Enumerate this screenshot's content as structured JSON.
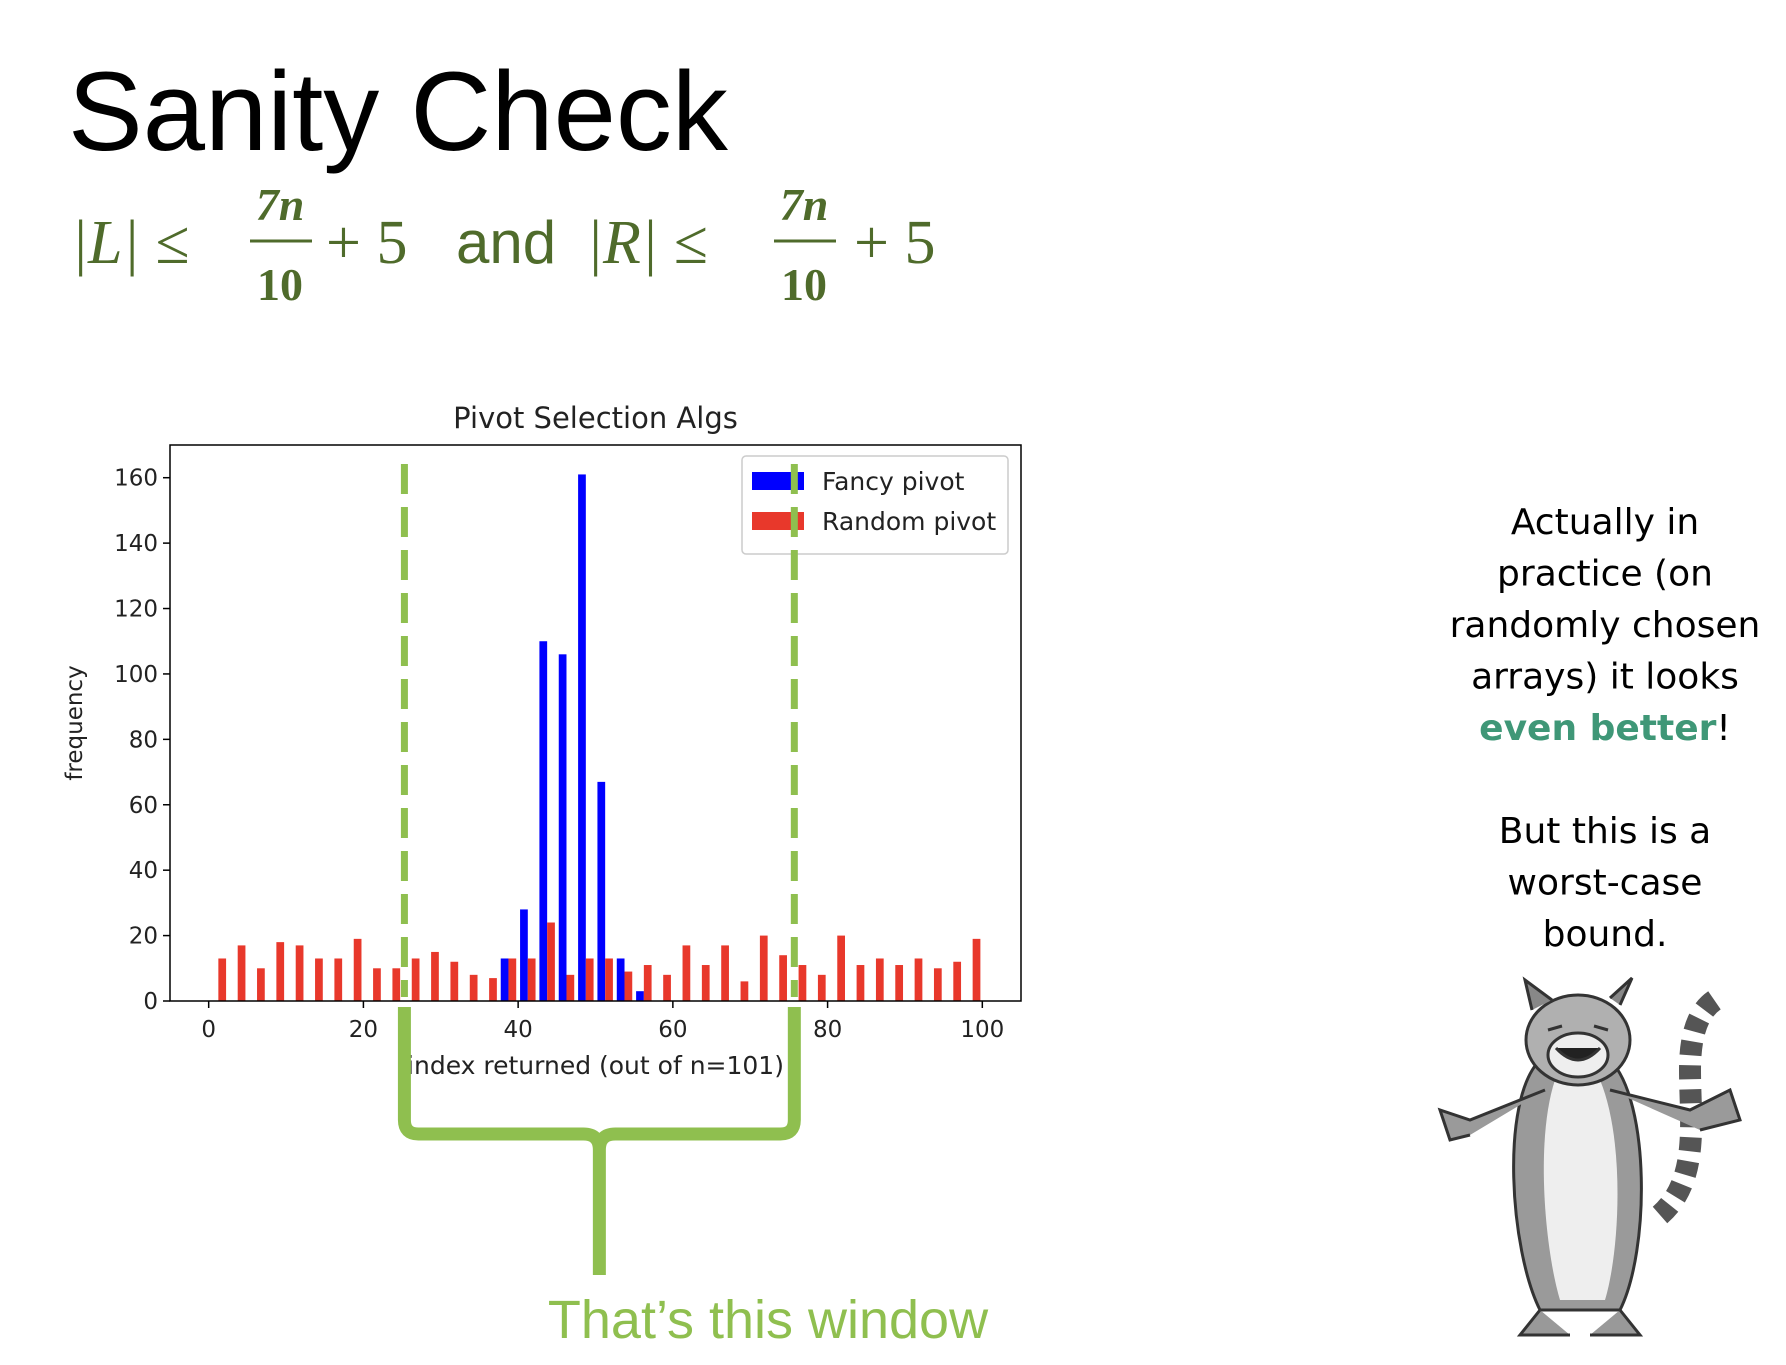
{
  "slide": {
    "title": "Sanity Check",
    "formula": {
      "lhs1": "|L| ≤",
      "frac_num": "7n",
      "frac_den": "10",
      "tail": "+ 5",
      "joiner": "and",
      "lhs2": "|R| ≤"
    },
    "note": {
      "lines": [
        "Actually in",
        "practice (on",
        "randomly chosen",
        "arrays) it looks"
      ],
      "emphasis": "even better",
      "end": "!",
      "lines2": [
        "But this is a",
        "worst-case",
        "bound."
      ]
    },
    "callout": "That’s this window"
  },
  "chart_data": {
    "type": "histogram",
    "title": "Pivot Selection Algs",
    "x_label": "index returned (out of n=101)",
    "y_label": "frequency",
    "bins": [
      0,
      2.5,
      5,
      7.5,
      10,
      12.5,
      15,
      17.5,
      20,
      22.5,
      25,
      27.5,
      30,
      32.5,
      35,
      37.5,
      40,
      42.5,
      45,
      47.5,
      50,
      52.5,
      55,
      57.5,
      60,
      62.5,
      65,
      67.5,
      70,
      72.5,
      75,
      77.5,
      80,
      82.5,
      85,
      87.5,
      90,
      92.5,
      95,
      97.5,
      100
    ],
    "series": [
      {
        "name": "Fancy pivot",
        "color": "#0000ff",
        "values": [
          0,
          0,
          0,
          0,
          0,
          0,
          0,
          0,
          0,
          0,
          0,
          0,
          0,
          0,
          0,
          13,
          28,
          110,
          106,
          161,
          67,
          13,
          3,
          0,
          0,
          0,
          0,
          0,
          0,
          0,
          0,
          0,
          0,
          0,
          0,
          0,
          0,
          0,
          0,
          0
        ]
      },
      {
        "name": "Random pivot",
        "color": "#e8382b",
        "values": [
          13,
          17,
          10,
          18,
          17,
          13,
          13,
          19,
          10,
          10,
          13,
          15,
          12,
          8,
          7,
          13,
          13,
          24,
          8,
          13,
          13,
          9,
          11,
          8,
          17,
          11,
          17,
          6,
          20,
          14,
          11,
          8,
          20,
          11,
          13,
          11,
          13,
          10,
          12,
          19
        ]
      }
    ],
    "xlim": [
      -5,
      105
    ],
    "ylim": [
      0,
      170
    ],
    "xticks": [
      0,
      20,
      40,
      60,
      80,
      100
    ],
    "yticks": [
      0,
      20,
      40,
      60,
      80,
      100,
      120,
      140,
      160
    ],
    "legend": "upper right",
    "window": {
      "x": [
        25.3,
        75.7
      ],
      "color": "#8fbf4f"
    }
  }
}
